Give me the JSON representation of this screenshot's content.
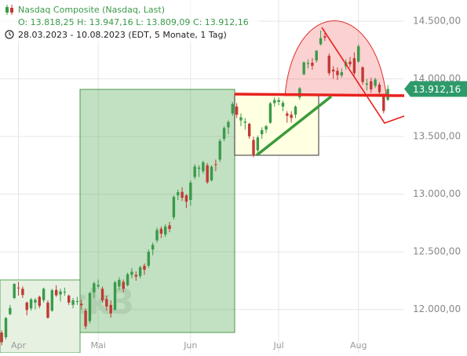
{
  "chart_data": {
    "type": "candlestick",
    "title": "Nasdaq Composite (Nasdaq, Last)",
    "subtitle": "O: 13.818,25  H: 13.947,16  L: 13.809,09  C: 13.912,16",
    "period": "28.03.2023 - 10.08.2023  (EDT, 5 Monate, 1 Tag)",
    "watermark": "stock3",
    "up_color": "#3a9a4a",
    "down_color": "#c03a34",
    "grid": true,
    "xlim": [
      -0.4,
      95.9
    ],
    "xticks": [
      {
        "value": 4,
        "label": "Apr"
      },
      {
        "value": 23,
        "label": "Mai"
      },
      {
        "value": 45,
        "label": "Jun"
      },
      {
        "value": 66,
        "label": "Jul"
      },
      {
        "value": 85,
        "label": "Aug"
      }
    ],
    "ylim": [
      11624,
      14684
    ],
    "yticks": [
      {
        "value": 12000,
        "label": "12.000,00"
      },
      {
        "value": 12500,
        "label": "12.500,00"
      },
      {
        "value": 13000,
        "label": "13.000,00"
      },
      {
        "value": 13500,
        "label": "13.500,00"
      },
      {
        "value": 14000,
        "label": "14.000,00"
      },
      {
        "value": 14500,
        "label": "14.500,00"
      }
    ],
    "price_tag": {
      "value": 13912.16,
      "label": "13.912,16",
      "color": "#2e9a6a"
    },
    "candles": [
      [
        11800,
        11820,
        11690,
        11716
      ],
      [
        11760,
        11935,
        11740,
        11926
      ],
      [
        11960,
        12040,
        11950,
        12013
      ],
      [
        12100,
        12227,
        12090,
        12222
      ],
      [
        12190,
        12240,
        12120,
        12189
      ],
      [
        12180,
        12200,
        12100,
        12126
      ],
      [
        12060,
        12070,
        11950,
        11996
      ],
      [
        12010,
        12100,
        11990,
        12088
      ],
      [
        12060,
        12100,
        12000,
        12084
      ],
      [
        12110,
        12120,
        12010,
        12031
      ],
      [
        12080,
        12190,
        12060,
        12180
      ],
      [
        12060,
        12080,
        11920,
        11929
      ],
      [
        11990,
        12180,
        11980,
        12167
      ],
      [
        12170,
        12210,
        12110,
        12123
      ],
      [
        12130,
        12180,
        12070,
        12157
      ],
      [
        12150,
        12190,
        12120,
        12154
      ],
      [
        12120,
        12130,
        12040,
        12060
      ],
      [
        12040,
        12100,
        12010,
        12080
      ],
      [
        12070,
        12110,
        12040,
        12073
      ],
      [
        12050,
        12090,
        12000,
        12037
      ],
      [
        11990,
        12010,
        11830,
        11854
      ],
      [
        11900,
        12150,
        11880,
        12143
      ],
      [
        12150,
        12240,
        12100,
        12227
      ],
      [
        12200,
        12260,
        12180,
        12213
      ],
      [
        12180,
        12200,
        12060,
        12080
      ],
      [
        12090,
        12120,
        11990,
        12025
      ],
      [
        12040,
        12080,
        11930,
        11966
      ],
      [
        12000,
        12250,
        11990,
        12236
      ],
      [
        12200,
        12280,
        12170,
        12257
      ],
      [
        12240,
        12260,
        12150,
        12180
      ],
      [
        12210,
        12320,
        12200,
        12306
      ],
      [
        12300,
        12360,
        12270,
        12328
      ],
      [
        12300,
        12330,
        12250,
        12285
      ],
      [
        12290,
        12380,
        12270,
        12366
      ],
      [
        12380,
        12400,
        12300,
        12344
      ],
      [
        12380,
        12520,
        12360,
        12500
      ],
      [
        12520,
        12580,
        12470,
        12560
      ],
      [
        12600,
        12710,
        12580,
        12689
      ],
      [
        12700,
        12720,
        12620,
        12658
      ],
      [
        12650,
        12740,
        12630,
        12720
      ],
      [
        12730,
        12760,
        12670,
        12698
      ],
      [
        12800,
        12990,
        12780,
        12976
      ],
      [
        12990,
        13040,
        12950,
        13017
      ],
      [
        13020,
        13060,
        12940,
        12969
      ],
      [
        12990,
        13000,
        12880,
        12935
      ],
      [
        12950,
        13120,
        12900,
        13100
      ],
      [
        13150,
        13260,
        13130,
        13240
      ],
      [
        13220,
        13250,
        13150,
        13230
      ],
      [
        13200,
        13290,
        13180,
        13276
      ],
      [
        13250,
        13270,
        13090,
        13104
      ],
      [
        13120,
        13250,
        13110,
        13238
      ],
      [
        13260,
        13300,
        13200,
        13259
      ],
      [
        13300,
        13480,
        13280,
        13461
      ],
      [
        13480,
        13590,
        13460,
        13573
      ],
      [
        13580,
        13640,
        13520,
        13626
      ],
      [
        13700,
        13800,
        13680,
        13782
      ],
      [
        13760,
        13790,
        13660,
        13689
      ],
      [
        13640,
        13700,
        13590,
        13667
      ],
      [
        13620,
        13660,
        13560,
        13630
      ],
      [
        13610,
        13620,
        13480,
        13502
      ],
      [
        13470,
        13500,
        13320,
        13335
      ],
      [
        13380,
        13510,
        13360,
        13492
      ],
      [
        13520,
        13580,
        13480,
        13555
      ],
      [
        13560,
        13600,
        13530,
        13591
      ],
      [
        13620,
        13800,
        13610,
        13788
      ],
      [
        13790,
        13840,
        13760,
        13816
      ],
      [
        13800,
        13840,
        13770,
        13816
      ],
      [
        13760,
        13810,
        13720,
        13792
      ],
      [
        13700,
        13720,
        13620,
        13680
      ],
      [
        13690,
        13720,
        13620,
        13661
      ],
      [
        13690,
        13770,
        13660,
        13760
      ],
      [
        13840,
        13930,
        13820,
        13918
      ],
      [
        14040,
        14150,
        14030,
        14144
      ],
      [
        14130,
        14170,
        14090,
        14138
      ],
      [
        14140,
        14180,
        14080,
        14113
      ],
      [
        14160,
        14250,
        14140,
        14244
      ],
      [
        14300,
        14420,
        14290,
        14353
      ],
      [
        14370,
        14400,
        14330,
        14358
      ],
      [
        14200,
        14220,
        14030,
        14050
      ],
      [
        14080,
        14110,
        14000,
        14064
      ],
      [
        14070,
        14100,
        13990,
        14032
      ],
      [
        14030,
        14090,
        14010,
        14058
      ],
      [
        14110,
        14170,
        14080,
        14144
      ],
      [
        14150,
        14190,
        14100,
        14127
      ],
      [
        14180,
        14230,
        14030,
        14050
      ],
      [
        14150,
        14300,
        14140,
        14283
      ],
      [
        14100,
        14110,
        13950,
        13973
      ],
      [
        13950,
        14000,
        13900,
        13960
      ],
      [
        13980,
        14010,
        13880,
        13909
      ],
      [
        13940,
        14010,
        13920,
        13994
      ],
      [
        13950,
        13970,
        13860,
        13884
      ],
      [
        13850,
        13870,
        13700,
        13722
      ],
      [
        13818.25,
        13947.16,
        13809.09,
        13912.16
      ]
    ]
  }
}
